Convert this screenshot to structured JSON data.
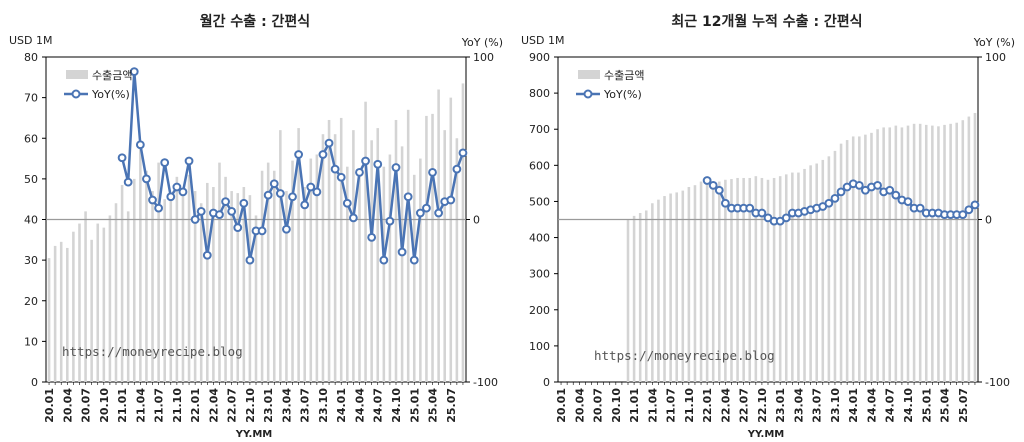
{
  "left_chart": {
    "title": "월간 수출 : 간편식",
    "y_unit_left": "USD 1M",
    "y_unit_right": "YoY (%)",
    "legend_bar": "수출금액",
    "legend_line": "YoY(%)",
    "xlabel": "YY.MM",
    "watermark": "https://moneyrecipe.blog"
  },
  "right_chart": {
    "title": "최근 12개월 누적 수출 : 간편식",
    "y_unit_left": "USD 1M",
    "y_unit_right": "YoY (%)",
    "legend_bar": "수출금액",
    "legend_line": "YoY(%)",
    "xlabel": "YY.MM",
    "watermark": "https://moneyrecipe.blog"
  },
  "chart_data": [
    {
      "type": "bar",
      "title": "월간 수출 : 간편식",
      "xlabel": "YY.MM",
      "ylabel": "USD 1M",
      "y2label": "YoY (%)",
      "ylim": [
        0,
        80
      ],
      "y_ticks": [
        0,
        10,
        20,
        30,
        40,
        50,
        60,
        70,
        80
      ],
      "y2lim": [
        -100,
        100
      ],
      "y2_ticks": [
        -100,
        0,
        100
      ],
      "x_tick_labels": [
        "20.01",
        "20.04",
        "20.07",
        "20.10",
        "21.01",
        "21.04",
        "21.07",
        "21.10",
        "22.01",
        "22.04",
        "22.07",
        "22.10",
        "23.01",
        "23.04",
        "23.07",
        "23.10",
        "24.01",
        "24.04",
        "24.07",
        "24.10",
        "25.01",
        "25.04",
        "25.07"
      ],
      "categories": [
        "20.01",
        "20.02",
        "20.03",
        "20.04",
        "20.05",
        "20.06",
        "20.07",
        "20.08",
        "20.09",
        "20.10",
        "20.11",
        "20.12",
        "21.01",
        "21.02",
        "21.03",
        "21.04",
        "21.05",
        "21.06",
        "21.07",
        "21.08",
        "21.09",
        "21.10",
        "21.11",
        "21.12",
        "22.01",
        "22.02",
        "22.03",
        "22.04",
        "22.05",
        "22.06",
        "22.07",
        "22.08",
        "22.09",
        "22.10",
        "22.11",
        "22.12",
        "23.01",
        "23.02",
        "23.03",
        "23.04",
        "23.05",
        "23.06",
        "23.07",
        "23.08",
        "23.09",
        "23.10",
        "23.11",
        "23.12",
        "24.01",
        "24.02",
        "24.03",
        "24.04",
        "24.05",
        "24.06",
        "24.07",
        "24.08",
        "24.09",
        "24.10",
        "24.11",
        "24.12",
        "25.01",
        "25.02",
        "25.03",
        "25.04",
        "25.05",
        "25.06",
        "25.07",
        "25.08",
        "25.09"
      ],
      "series": [
        {
          "name": "수출금액",
          "type": "bar",
          "axis": "left",
          "values": [
            30.5,
            33.5,
            34.5,
            33,
            37,
            39,
            42,
            35,
            39,
            38,
            41,
            44,
            48.5,
            42,
            50,
            58.5,
            52,
            47,
            54,
            45,
            46,
            50.5,
            47,
            51,
            47,
            44,
            49,
            48,
            54,
            50.5,
            47,
            46.5,
            48,
            46,
            41,
            52,
            54,
            52,
            62,
            47,
            54.5,
            62.5,
            48,
            55,
            56,
            61,
            64.5,
            61,
            65,
            53,
            62,
            51,
            69,
            59.5,
            62.5,
            53,
            56,
            64.5,
            58,
            67,
            51,
            55,
            65.5,
            66,
            72,
            62,
            70,
            60,
            73.5
          ]
        },
        {
          "name": "YoY(%)",
          "type": "line",
          "axis": "right",
          "values": [
            null,
            null,
            null,
            null,
            null,
            null,
            null,
            null,
            null,
            null,
            null,
            null,
            38,
            23,
            91,
            46,
            25,
            12,
            7,
            35,
            14,
            20,
            17,
            36,
            0,
            5,
            -22,
            4,
            3,
            11,
            5,
            -5,
            10,
            -25,
            -7,
            -7,
            15,
            22,
            16,
            -6,
            14,
            40,
            9,
            20,
            17,
            40,
            47,
            31,
            26,
            10,
            1,
            29,
            36,
            -11,
            34,
            -25,
            -1,
            32,
            -20,
            14,
            -25,
            4,
            7,
            29,
            4,
            11,
            12,
            31,
            41
          ]
        }
      ]
    },
    {
      "type": "bar",
      "title": "최근 12개월 누적 수출 : 간편식",
      "xlabel": "YY.MM",
      "ylabel": "USD 1M",
      "y2label": "YoY (%)",
      "ylim": [
        0,
        900
      ],
      "y_ticks": [
        0,
        100,
        200,
        300,
        400,
        500,
        600,
        700,
        800,
        900
      ],
      "y2lim": [
        -100,
        100
      ],
      "y2_ticks": [
        -100,
        0,
        100
      ],
      "x_tick_labels": [
        "20.01",
        "20.04",
        "20.07",
        "20.10",
        "21.01",
        "21.04",
        "21.07",
        "21.10",
        "22.01",
        "22.04",
        "22.07",
        "22.10",
        "23.01",
        "23.04",
        "23.07",
        "23.10",
        "24.01",
        "24.04",
        "24.07",
        "24.10",
        "25.01",
        "25.04",
        "25.07"
      ],
      "categories": [
        "20.01",
        "20.02",
        "20.03",
        "20.04",
        "20.05",
        "20.06",
        "20.07",
        "20.08",
        "20.09",
        "20.10",
        "20.11",
        "20.12",
        "21.01",
        "21.02",
        "21.03",
        "21.04",
        "21.05",
        "21.06",
        "21.07",
        "21.08",
        "21.09",
        "21.10",
        "21.11",
        "21.12",
        "22.01",
        "22.02",
        "22.03",
        "22.04",
        "22.05",
        "22.06",
        "22.07",
        "22.08",
        "22.09",
        "22.10",
        "22.11",
        "22.12",
        "23.01",
        "23.02",
        "23.03",
        "23.04",
        "23.05",
        "23.06",
        "23.07",
        "23.08",
        "23.09",
        "23.10",
        "23.11",
        "23.12",
        "24.01",
        "24.02",
        "24.03",
        "24.04",
        "24.05",
        "24.06",
        "24.07",
        "24.08",
        "24.09",
        "24.10",
        "24.11",
        "24.12",
        "25.01",
        "25.02",
        "25.03",
        "25.04",
        "25.05",
        "25.06",
        "25.07",
        "25.08",
        "25.09"
      ],
      "series": [
        {
          "name": "수출금액",
          "type": "bar",
          "axis": "left",
          "values": [
            null,
            null,
            null,
            null,
            null,
            null,
            null,
            null,
            null,
            null,
            null,
            450,
            460,
            468,
            475,
            495,
            505,
            515,
            522,
            525,
            530,
            540,
            545,
            555,
            560,
            555,
            555,
            560,
            562,
            565,
            565,
            565,
            570,
            565,
            560,
            565,
            570,
            575,
            580,
            580,
            590,
            600,
            605,
            615,
            625,
            640,
            660,
            670,
            680,
            680,
            685,
            690,
            700,
            705,
            705,
            710,
            705,
            710,
            715,
            715,
            712,
            710,
            708,
            712,
            715,
            718,
            725,
            735,
            745
          ]
        },
        {
          "name": "YoY(%)",
          "type": "line",
          "axis": "right",
          "values": [
            null,
            null,
            null,
            null,
            null,
            null,
            null,
            null,
            null,
            null,
            null,
            null,
            null,
            null,
            null,
            null,
            null,
            null,
            null,
            null,
            null,
            null,
            null,
            null,
            24,
            21,
            18,
            10,
            7,
            7,
            7,
            7,
            4,
            4,
            1,
            -1,
            -1,
            1,
            4,
            4,
            5,
            6,
            7,
            8,
            10,
            13,
            17,
            20,
            22,
            21,
            18,
            20,
            21,
            17,
            18,
            15,
            12,
            11,
            7,
            7,
            4,
            4,
            4,
            3,
            3,
            3,
            3,
            6,
            9
          ]
        }
      ]
    }
  ]
}
